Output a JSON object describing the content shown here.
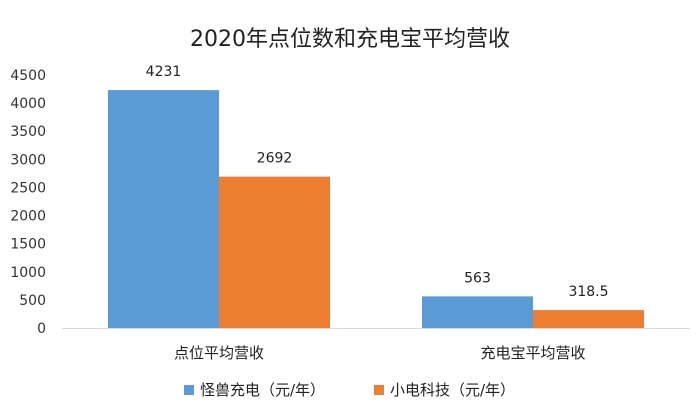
{
  "chart_data": {
    "type": "bar",
    "title": "2020年点位数和充电宝平均营收",
    "categories": [
      "点位平均营收",
      "充电宝平均营收"
    ],
    "series": [
      {
        "name": "怪兽充电（元/年）",
        "values": [
          4231,
          563
        ],
        "color": "#5B9BD5"
      },
      {
        "name": "小电科技（元/年）",
        "values": [
          2692,
          318.5
        ],
        "color": "#ED7D31"
      }
    ],
    "data_labels": [
      [
        "4231",
        "563"
      ],
      [
        "2692",
        "318.5"
      ]
    ],
    "ylim": [
      0,
      4500
    ],
    "yticks": [
      0,
      500,
      1000,
      1500,
      2000,
      2500,
      3000,
      3500,
      4000,
      4500
    ],
    "ytick_labels": [
      "0",
      "500",
      "1000",
      "1500",
      "2000",
      "2500",
      "3000",
      "3500",
      "4000",
      "4500"
    ],
    "grid": false,
    "legend_position": "bottom",
    "xlabel": "",
    "ylabel": ""
  }
}
